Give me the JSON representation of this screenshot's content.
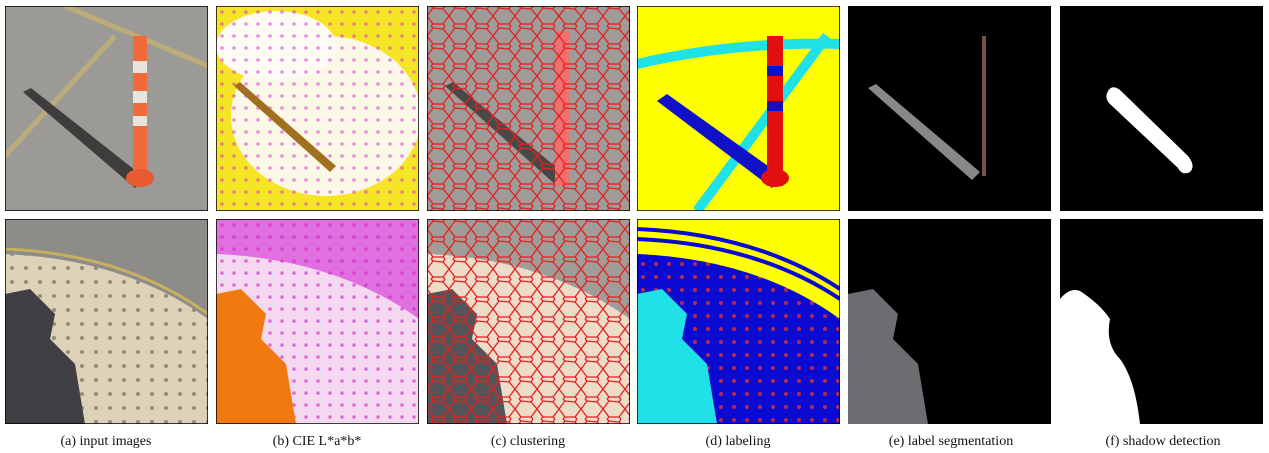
{
  "figure": {
    "panels": [
      {
        "caption": "(a) input images"
      },
      {
        "caption": "(b) CIE L*a*b*"
      },
      {
        "caption": "(c) clustering"
      },
      {
        "caption": "(d) labeling"
      },
      {
        "caption": "(e) label segmentation"
      },
      {
        "caption": "(f) shadow detection"
      }
    ]
  }
}
